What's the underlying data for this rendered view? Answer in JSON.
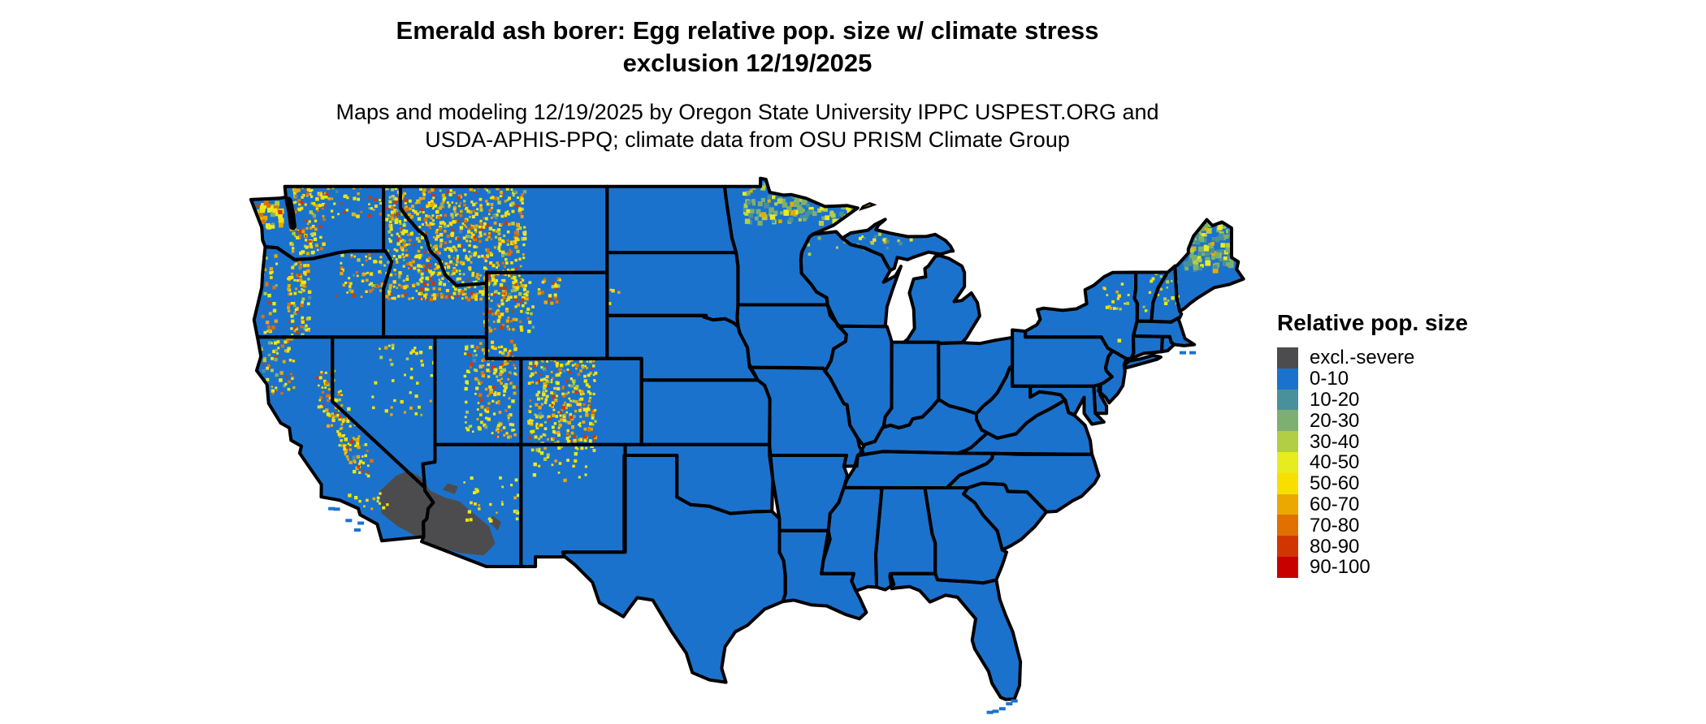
{
  "figure": {
    "title_line1": "Emerald ash borer: Egg relative pop. size w/ climate stress",
    "title_line2": "exclusion 12/19/2025",
    "subtitle_line1": "Maps and modeling 12/19/2025 by Oregon State University IPPC USPEST.ORG and",
    "subtitle_line2": "USDA-APHIS-PPQ; climate data from OSU PRISM Climate Group"
  },
  "legend": {
    "title": "Relative pop. size",
    "items": [
      {
        "label": "excl.-severe",
        "color": "#4C4C4E"
      },
      {
        "label": "0-10",
        "color": "#1B72CC"
      },
      {
        "label": "10-20",
        "color": "#4A909C"
      },
      {
        "label": "20-30",
        "color": "#7DB070"
      },
      {
        "label": "30-40",
        "color": "#B2CE45"
      },
      {
        "label": "40-50",
        "color": "#E8EB1E"
      },
      {
        "label": "50-60",
        "color": "#F8DF00"
      },
      {
        "label": "60-70",
        "color": "#EBA800"
      },
      {
        "label": "70-80",
        "color": "#E07000"
      },
      {
        "label": "80-90",
        "color": "#D23600"
      },
      {
        "label": "90-100",
        "color": "#C80000"
      }
    ]
  },
  "map": {
    "background": "#FFFFFF",
    "land_color": "#1B72CC",
    "border_color": "#000000",
    "exclusion_color": "#4C4C4E",
    "exclusion_polygons": [
      [
        -117.3,
        34.8,
        -116.3,
        35.55,
        -115.6,
        35.8,
        -114.9,
        35.5,
        -114.3,
        34.85,
        -113.5,
        34.55,
        -112.6,
        34.35,
        -111.8,
        33.8,
        -110.9,
        33.2,
        -110.55,
        32.4,
        -111.2,
        31.85,
        -112.5,
        31.95,
        -113.8,
        32.2,
        -114.8,
        32.6,
        -116.2,
        33.2,
        -117.15,
        33.8
      ],
      [
        -113.3,
        35.2,
        -112.7,
        35.05,
        -112.9,
        34.7,
        -113.6,
        34.9
      ],
      [
        -110.7,
        33.7,
        -110.2,
        33.4,
        -110.4,
        33.0,
        -110.9,
        33.4
      ]
    ],
    "palettes": {
      "west": {
        "#F8DF00": 28,
        "#E8EB1E": 20,
        "#EBA800": 18,
        "#E07000": 12,
        "#D23600": 8,
        "#B2CE45": 8,
        "#7DB070": 4,
        "#4A909C": 2
      },
      "sparse": {
        "#F8DF00": 40,
        "#E8EB1E": 30,
        "#EBA800": 20,
        "#B2CE45": 10
      },
      "northgreen": {
        "#7DB070": 32,
        "#4A909C": 22,
        "#B2CE45": 24,
        "#E8EB1E": 14,
        "#EBA800": 8
      },
      "maine": {
        "#4A909C": 34,
        "#7DB070": 28,
        "#B2CE45": 20,
        "#E8EB1E": 12,
        "#EBA800": 6
      },
      "eastmtn": {
        "#E8EB1E": 35,
        "#B2CE45": 30,
        "#F8DF00": 25,
        "#EBA800": 10
      },
      "isle": {
        "#E07000": 45,
        "#D23600": 30,
        "#EBA800": 25
      }
    },
    "speckle_regions": [
      {
        "name": "olympic-peninsula",
        "w": -124.6,
        "e": -123.1,
        "s": 47.2,
        "n": 48.35,
        "cov": 0.5,
        "pal": "west",
        "big": true
      },
      {
        "name": "washington-cascades",
        "w": -122.5,
        "e": -120.6,
        "s": 45.9,
        "n": 49.0,
        "cov": 0.42,
        "pal": "west"
      },
      {
        "name": "north-washington-idaho-highlands",
        "w": -120.6,
        "e": -116.3,
        "s": 47.5,
        "n": 49.0,
        "cov": 0.2,
        "pal": "west"
      },
      {
        "name": "oregon-cascades",
        "w": -122.7,
        "e": -121.4,
        "s": 42.0,
        "n": 45.6,
        "cov": 0.45,
        "pal": "west"
      },
      {
        "name": "oregon-coast-range",
        "w": -124.35,
        "e": -123.3,
        "s": 42.0,
        "n": 46.1,
        "cov": 0.18,
        "pal": "west"
      },
      {
        "name": "blue-mountains",
        "w": -119.9,
        "e": -116.9,
        "s": 43.9,
        "n": 45.9,
        "cov": 0.22,
        "pal": "west"
      },
      {
        "name": "klamath-north-california",
        "w": -124.2,
        "e": -122.3,
        "s": 39.4,
        "n": 42.0,
        "cov": 0.22,
        "pal": "west"
      },
      {
        "name": "sierra-1",
        "w": -121.0,
        "e": -119.9,
        "s": 39.4,
        "n": 40.6,
        "cov": 0.3,
        "pal": "west"
      },
      {
        "name": "sierra-2",
        "w": -120.9,
        "e": -119.5,
        "s": 38.6,
        "n": 39.6,
        "cov": 0.35,
        "pal": "west"
      },
      {
        "name": "sierra-3",
        "w": -120.4,
        "e": -119.0,
        "s": 37.8,
        "n": 38.8,
        "cov": 0.35,
        "pal": "west"
      },
      {
        "name": "sierra-4",
        "w": -119.9,
        "e": -118.5,
        "s": 37.0,
        "n": 38.0,
        "cov": 0.35,
        "pal": "west"
      },
      {
        "name": "sierra-5",
        "w": -119.4,
        "e": -118.0,
        "s": 36.2,
        "n": 37.2,
        "cov": 0.35,
        "pal": "west"
      },
      {
        "name": "sierra-6",
        "w": -118.9,
        "e": -117.8,
        "s": 35.5,
        "n": 36.4,
        "cov": 0.3,
        "pal": "west"
      },
      {
        "name": "socal-transverse-ranges",
        "w": -119.5,
        "e": -116.8,
        "s": 34.0,
        "n": 34.9,
        "cov": 0.12,
        "pal": "sparse"
      },
      {
        "name": "idaho-montana-rockies",
        "w": -116.9,
        "e": -108.9,
        "s": 43.8,
        "n": 49.0,
        "cov": 0.4,
        "pal": "west"
      },
      {
        "name": "yellowstone-wind-river",
        "w": -111.3,
        "e": -108.4,
        "s": 42.3,
        "n": 45.1,
        "cov": 0.3,
        "pal": "west"
      },
      {
        "name": "bighorn-mountains",
        "w": -108.1,
        "e": -106.7,
        "s": 43.5,
        "n": 44.9,
        "cov": 0.25,
        "pal": "west"
      },
      {
        "name": "wasatch-uinta",
        "w": -112.4,
        "e": -109.4,
        "s": 37.4,
        "n": 41.9,
        "cov": 0.3,
        "pal": "west"
      },
      {
        "name": "colorado-rockies",
        "w": -108.7,
        "e": -104.8,
        "s": 36.8,
        "n": 41.05,
        "cov": 0.4,
        "pal": "west"
      },
      {
        "name": "nevada-ranges",
        "w": -117.8,
        "e": -114.2,
        "s": 38.4,
        "n": 41.8,
        "cov": 0.07,
        "pal": "sparse"
      },
      {
        "name": "northern-new-mexico",
        "w": -108.5,
        "e": -105.3,
        "s": 35.3,
        "n": 36.8,
        "cov": 0.1,
        "pal": "sparse"
      },
      {
        "name": "arizona-mogollon",
        "w": -112.6,
        "e": -109.2,
        "s": 33.5,
        "n": 35.6,
        "cov": 0.09,
        "pal": "sparse"
      },
      {
        "name": "black-hills",
        "w": -104.1,
        "e": -103.4,
        "s": 43.5,
        "n": 44.4,
        "cov": 0.12,
        "pal": "sparse"
      },
      {
        "name": "northern-minnesota",
        "w": -96.2,
        "e": -89.9,
        "s": 47.4,
        "n": 49.35,
        "cov": 0.3,
        "pal": "northgreen",
        "big": true
      },
      {
        "name": "upper-michigan",
        "w": -90.4,
        "e": -86.4,
        "s": 46.1,
        "n": 46.95,
        "cov": 0.14,
        "pal": "northgreen"
      },
      {
        "name": "northern-wisconsin",
        "w": -92.5,
        "e": -90.5,
        "s": 45.9,
        "n": 46.8,
        "cov": 0.06,
        "pal": "northgreen"
      },
      {
        "name": "northern-maine",
        "w": -70.6,
        "e": -67.9,
        "s": 45.2,
        "n": 47.4,
        "cov": 0.5,
        "pal": "maine",
        "big": true
      },
      {
        "name": "adirondacks",
        "w": -75.3,
        "e": -73.7,
        "s": 43.3,
        "n": 44.55,
        "cov": 0.18,
        "pal": "eastmtn"
      },
      {
        "name": "white-mountains",
        "w": -72.3,
        "e": -70.9,
        "s": 43.6,
        "n": 45.2,
        "cov": 0.16,
        "pal": "eastmtn"
      },
      {
        "name": "green-mountains",
        "w": -73.1,
        "e": -72.4,
        "s": 42.9,
        "n": 44.8,
        "cov": 0.08,
        "pal": "eastmtn"
      },
      {
        "name": "catskills",
        "w": -74.9,
        "e": -74.1,
        "s": 41.9,
        "n": 42.4,
        "cov": 0.06,
        "pal": "eastmtn"
      }
    ],
    "islands": {
      "isle_royale": [
        -89.3,
        47.95,
        -88.9,
        48.05,
        -88.55,
        48.15,
        -88.8,
        48.22,
        -89.2,
        48.07
      ],
      "isle_royale_color": "#EBA800",
      "blue_dots": [
        [
          -120.05,
          34.02
        ],
        [
          -119.75,
          34.0
        ],
        [
          -119.05,
          33.47
        ],
        [
          -118.35,
          33.35
        ],
        [
          -118.55,
          33.03
        ],
        [
          -80.4,
          25.08
        ],
        [
          -80.7,
          24.95
        ],
        [
          -81.1,
          24.72
        ],
        [
          -81.5,
          24.6
        ],
        [
          -81.82,
          24.55
        ],
        [
          -70.62,
          41.27
        ],
        [
          -70.05,
          41.27
        ]
      ]
    }
  }
}
